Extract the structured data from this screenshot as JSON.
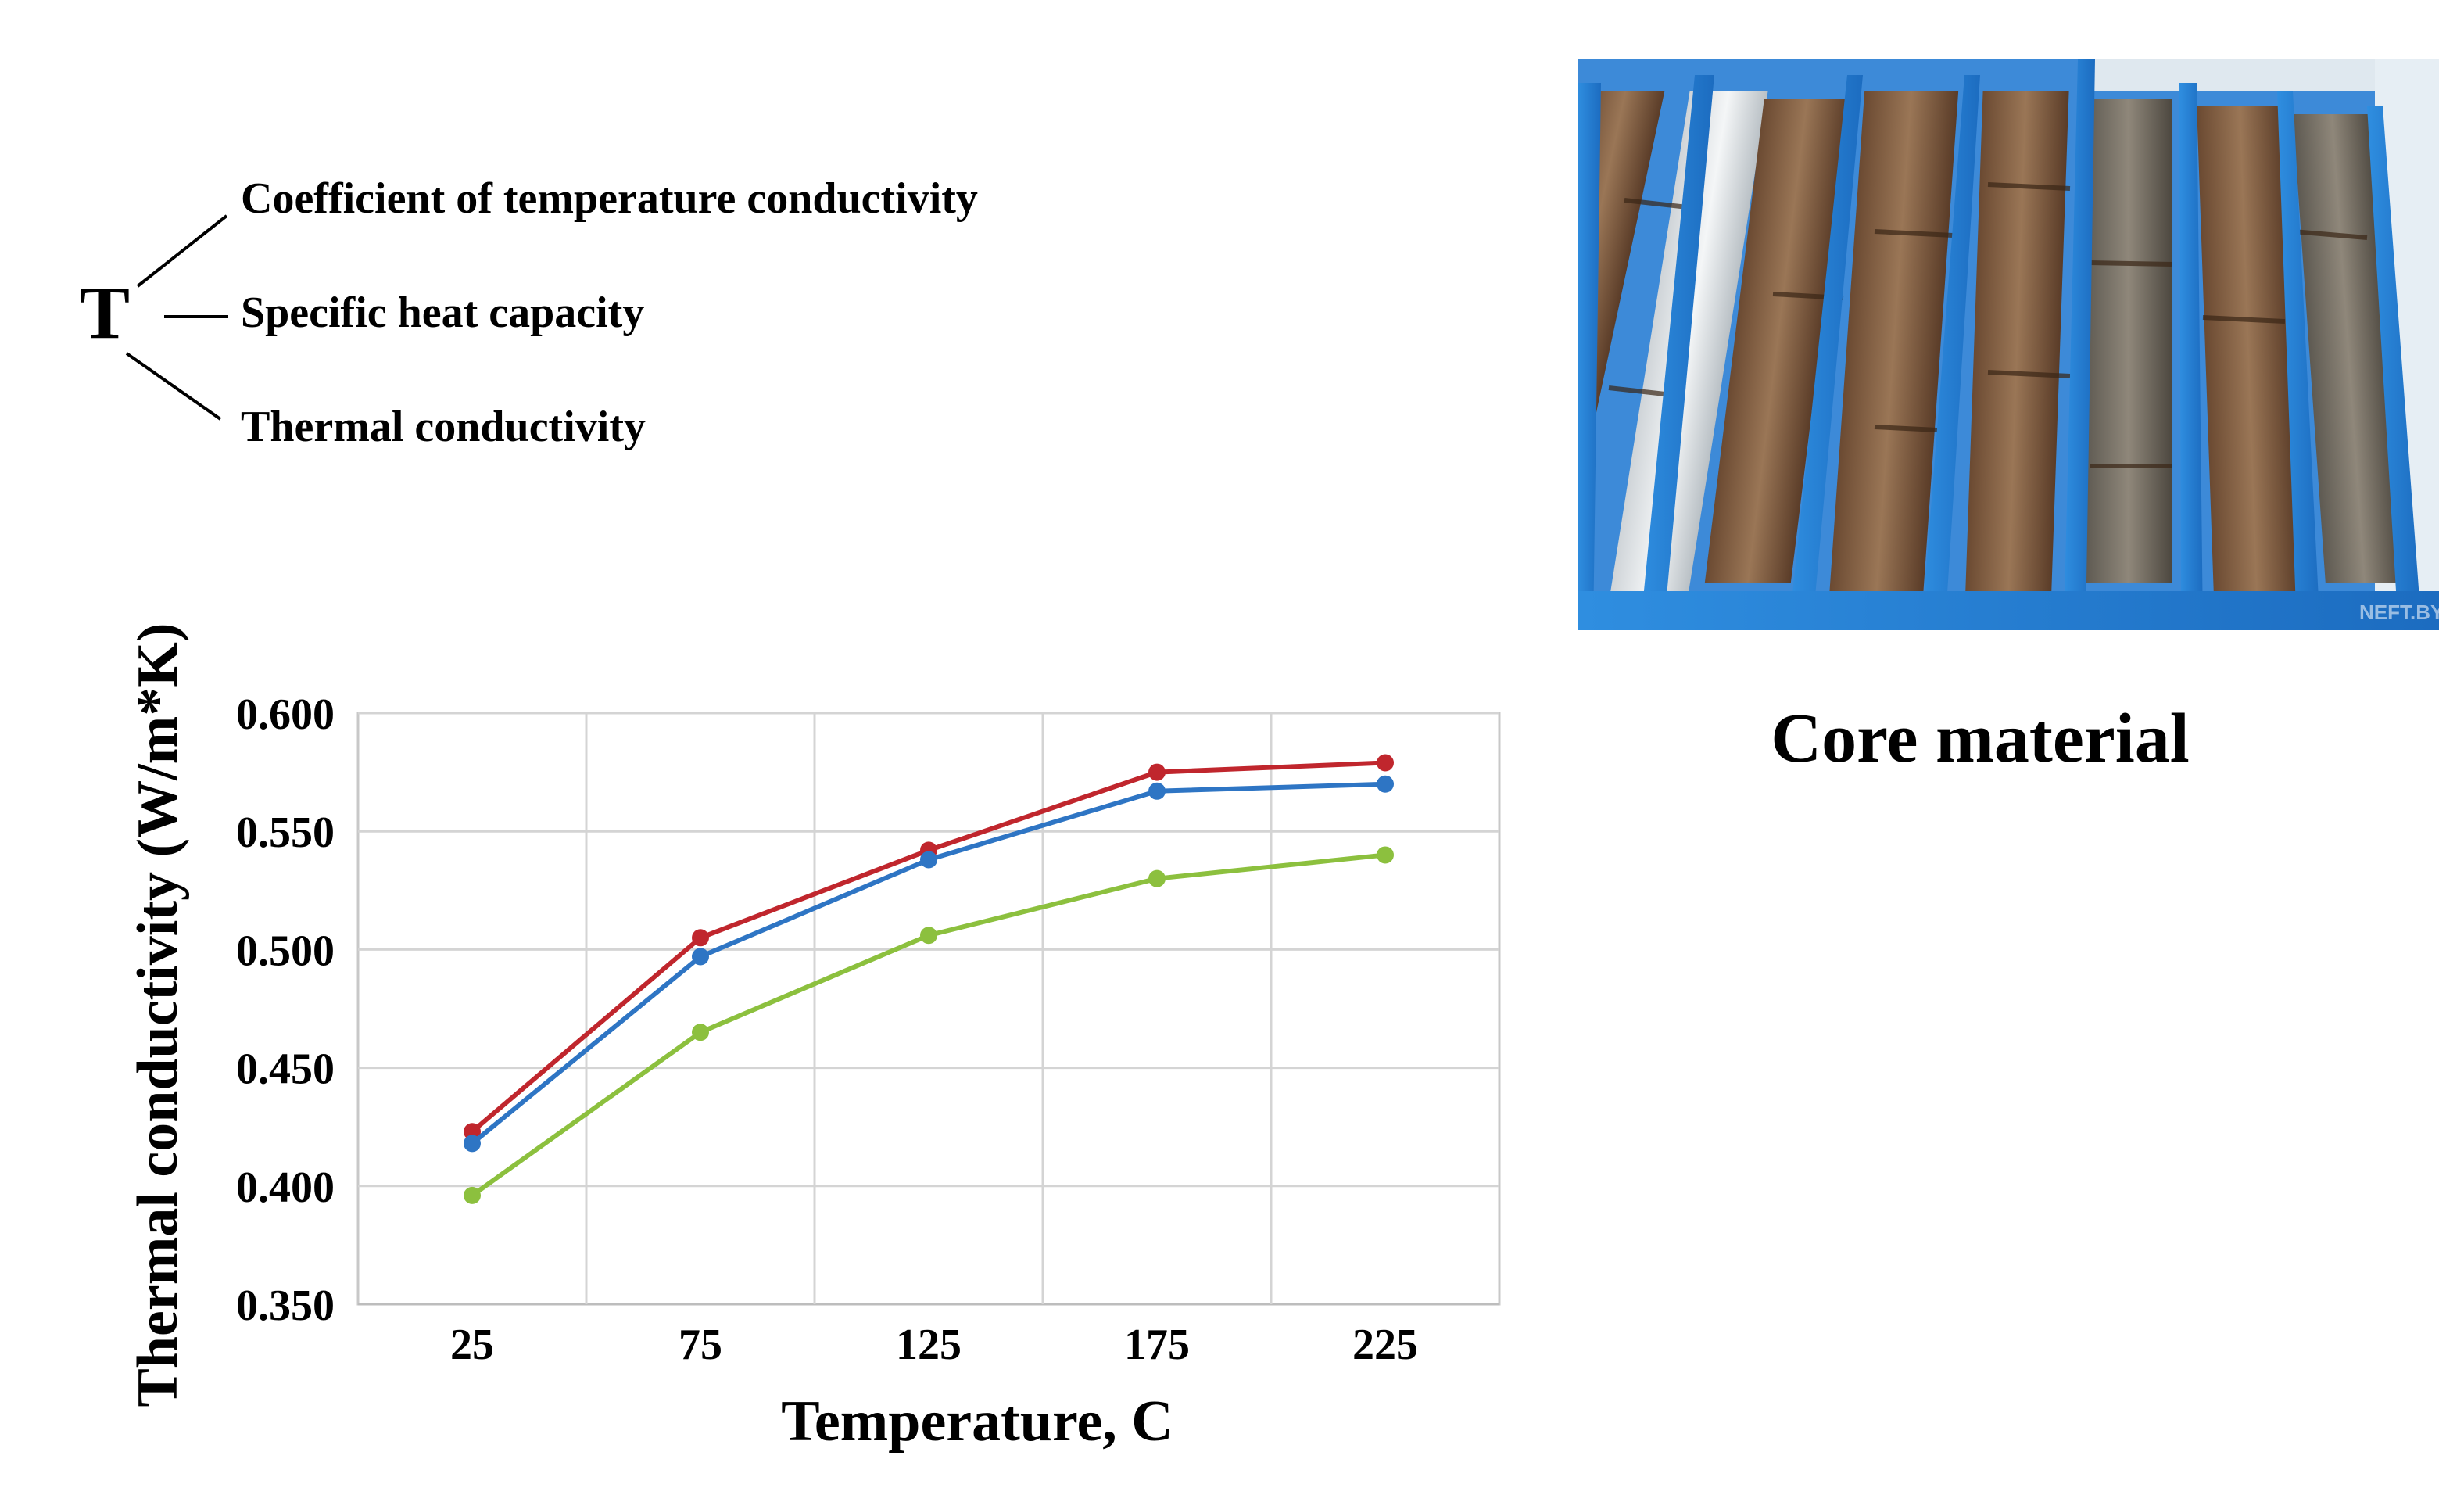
{
  "tree": {
    "root": "T",
    "items": [
      "Coefficient of temperature  conductivity",
      "Specific heat capacity",
      "Thermal conductivity"
    ]
  },
  "photo": {
    "caption": "Core material",
    "watermark": "NEFT.BY"
  },
  "chart_data": {
    "type": "line",
    "title": "",
    "xlabel": "Temperature, C",
    "ylabel": "Thermal conductivity (W/m*K)",
    "x": [
      25,
      75,
      125,
      175,
      225
    ],
    "x_ticks": [
      "25",
      "75",
      "125",
      "175",
      "225"
    ],
    "y_ticks": [
      "0.600",
      "0.550",
      "0.500",
      "0.450",
      "0.400",
      "0.350"
    ],
    "ylim": [
      0.35,
      0.6
    ],
    "grid": true,
    "legend": "none",
    "series": [
      {
        "color": "#c0262d",
        "values": [
          0.423,
          0.505,
          0.542,
          0.575,
          0.579
        ]
      },
      {
        "color": "#2e75c4",
        "values": [
          0.418,
          0.497,
          0.538,
          0.567,
          0.57
        ]
      },
      {
        "color": "#8cc03e",
        "values": [
          0.396,
          0.465,
          0.506,
          0.53,
          0.54
        ]
      }
    ]
  }
}
